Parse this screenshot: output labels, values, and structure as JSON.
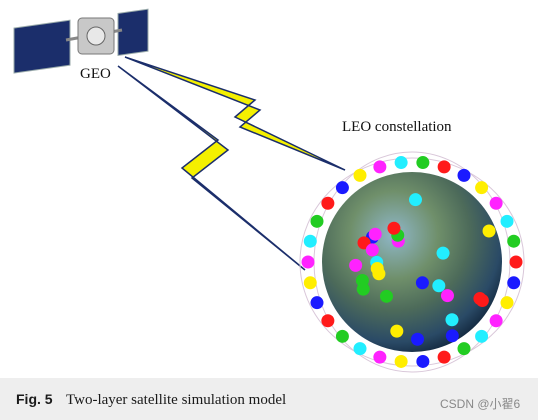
{
  "labels": {
    "geo": "GEO",
    "leo": "LEO constellation"
  },
  "caption": {
    "number": "Fig. 5",
    "text": "Two-layer satellite simulation model"
  },
  "watermark": "CSDN @小翟6"
}
